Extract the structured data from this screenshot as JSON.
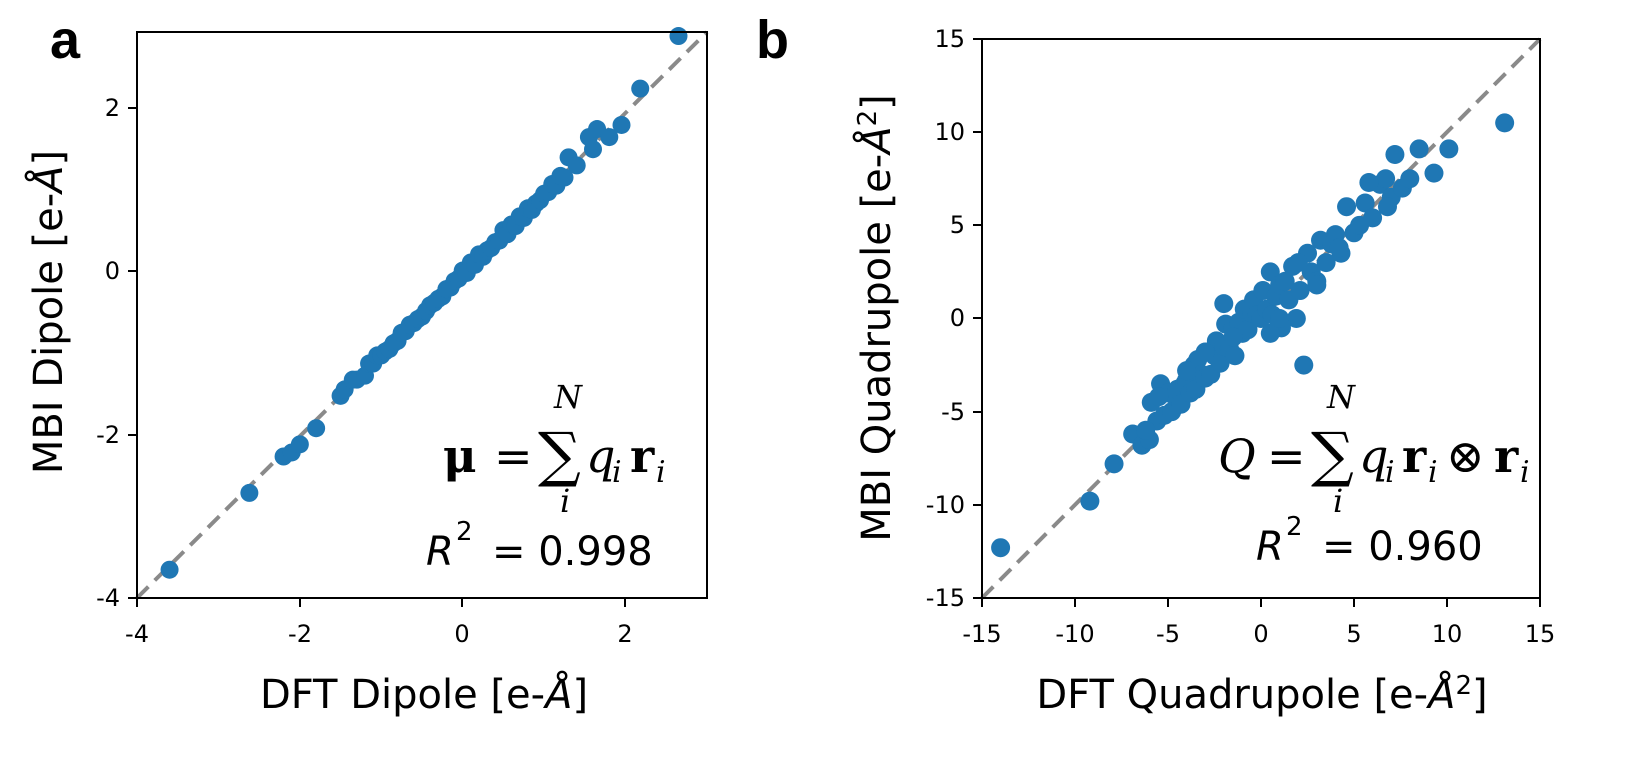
{
  "figure": {
    "panels": [
      {
        "letter": "a",
        "xlabel_prefix": "DFT Dipole [e-",
        "xlabel_unit": "Å",
        "xlabel_suffix": "]",
        "ylabel_prefix": "MBI Dipole [e-",
        "ylabel_unit": "Å",
        "ylabel_suffix": "]",
        "xticks": [
          "-4",
          "-2",
          "0",
          "2"
        ],
        "yticks": [
          "-4",
          "-2",
          "0",
          "2"
        ],
        "r2_label": "R",
        "r2_exp": "2",
        "r2_value": "= 0.998",
        "formula_lhs": "μ",
        "formula_eq": "=",
        "formula_sum": "∑",
        "formula_upper": "N",
        "formula_lower": "i",
        "formula_q": "q",
        "formula_qi": "i",
        "formula_r": "r",
        "formula_ri": "i"
      },
      {
        "letter": "b",
        "xlabel_prefix": "DFT Quadrupole [e-",
        "xlabel_unit": "Å",
        "xlabel_exp": "2",
        "xlabel_suffix": "]",
        "ylabel_prefix": "MBI Quadrupole [e-",
        "ylabel_unit": "Å",
        "ylabel_exp": "2",
        "ylabel_suffix": "]",
        "xticks": [
          "-15",
          "-10",
          "-5",
          "0",
          "5",
          "10",
          "15"
        ],
        "yticks": [
          "-15",
          "-10",
          "-5",
          "0",
          "5",
          "10",
          "15"
        ],
        "r2_label": "R",
        "r2_exp": "2",
        "r2_value": "= 0.960",
        "formula_lhs": "Q",
        "formula_eq": "=",
        "formula_sum": "∑",
        "formula_upper": "N",
        "formula_lower": "i",
        "formula_q": "q",
        "formula_qi": "i",
        "formula_r": "r",
        "formula_ri": "i",
        "formula_otimes": "⊗",
        "formula_r2": "r",
        "formula_r2i": "i"
      }
    ]
  },
  "chart_data": [
    {
      "type": "scatter",
      "title": "a",
      "xlabel": "DFT Dipole [e-Å]",
      "ylabel": "MBI Dipole [e-Å]",
      "xlim": [
        -4,
        3
      ],
      "ylim": [
        -4,
        3
      ],
      "xticks": [
        -4,
        -2,
        0,
        2
      ],
      "yticks": [
        -4,
        -2,
        0,
        2
      ],
      "grid": false,
      "color": "#1f77b4",
      "reference_line": "y = x (dashed gray)",
      "annotation": "R^2 = 0.998",
      "formula": "μ = Σ_i^N q_i r_i",
      "x": [
        -3.6,
        -2.62,
        -2.2,
        -2.1,
        -2.0,
        -1.8,
        -1.5,
        -1.45,
        -1.35,
        -1.3,
        -1.2,
        -1.15,
        -1.1,
        -1.05,
        -1.0,
        -0.95,
        -0.9,
        -0.85,
        -0.8,
        -0.75,
        -0.7,
        -0.65,
        -0.6,
        -0.55,
        -0.5,
        -0.45,
        -0.4,
        -0.35,
        -0.3,
        -0.25,
        -0.2,
        -0.15,
        -0.1,
        -0.05,
        0.0,
        0.05,
        0.1,
        0.15,
        0.2,
        0.25,
        0.3,
        0.35,
        0.4,
        0.45,
        0.5,
        0.55,
        0.6,
        0.65,
        0.7,
        0.75,
        0.8,
        0.85,
        0.9,
        0.95,
        1.0,
        1.05,
        1.1,
        1.15,
        1.2,
        1.25,
        1.3,
        1.4,
        1.55,
        1.6,
        1.65,
        1.8,
        1.95,
        2.18,
        2.65
      ],
      "y": [
        -3.65,
        -2.7,
        -2.25,
        -2.2,
        -2.1,
        -1.9,
        -1.5,
        -1.42,
        -1.3,
        -1.3,
        -1.25,
        -1.1,
        -1.1,
        -1.0,
        -1.0,
        -0.95,
        -0.92,
        -0.85,
        -0.82,
        -0.72,
        -0.7,
        -0.62,
        -0.6,
        -0.55,
        -0.52,
        -0.45,
        -0.38,
        -0.35,
        -0.3,
        -0.27,
        -0.18,
        -0.16,
        -0.08,
        -0.05,
        0.05,
        0.02,
        0.15,
        0.12,
        0.25,
        0.22,
        0.3,
        0.33,
        0.4,
        0.42,
        0.55,
        0.5,
        0.62,
        0.6,
        0.72,
        0.7,
        0.82,
        0.8,
        0.88,
        0.92,
        1.0,
        1.02,
        1.12,
        1.1,
        1.22,
        1.2,
        1.45,
        1.35,
        1.7,
        1.55,
        1.8,
        1.7,
        1.85,
        2.3,
        2.95
      ]
    },
    {
      "type": "scatter",
      "title": "b",
      "xlabel": "DFT Quadrupole [e-Å^2]",
      "ylabel": "MBI Quadrupole [e-Å^2]",
      "xlim": [
        -15,
        15
      ],
      "ylim": [
        -15,
        15
      ],
      "xticks": [
        -15,
        -10,
        -5,
        0,
        5,
        10,
        15
      ],
      "yticks": [
        -15,
        -10,
        -5,
        0,
        5,
        10,
        15
      ],
      "grid": false,
      "color": "#1f77b4",
      "reference_line": "y = x (dashed gray)",
      "annotation": "R^2 = 0.960",
      "formula": "Q = Σ_i^N q_i r_i ⊗ r_i",
      "x": [
        -14.0,
        -9.2,
        -7.9,
        -6.9,
        -6.4,
        -6.0,
        -5.9,
        -5.6,
        -5.4,
        -5.2,
        -5.0,
        -4.8,
        -4.6,
        -4.5,
        -4.3,
        -4.1,
        -4.0,
        -3.8,
        -3.6,
        -3.5,
        -3.4,
        -3.2,
        -3.0,
        -2.9,
        -2.7,
        -2.5,
        -2.4,
        -2.2,
        -2.0,
        -1.9,
        -1.7,
        -1.5,
        -1.4,
        -1.2,
        -1.0,
        -0.9,
        -0.7,
        -0.5,
        -0.4,
        -0.2,
        0.0,
        0.1,
        0.3,
        0.5,
        0.6,
        0.8,
        1.0,
        1.1,
        1.3,
        1.5,
        1.7,
        1.9,
        2.1,
        2.3,
        2.5,
        2.7,
        3.0,
        3.2,
        3.5,
        3.8,
        4.0,
        4.3,
        4.6,
        5.0,
        5.3,
        5.6,
        6.0,
        6.4,
        6.7,
        7.0,
        7.2,
        7.6,
        8.0,
        8.5,
        9.3,
        10.1,
        13.1,
        -3.0,
        -2.0,
        -1.5,
        0.5,
        1.0,
        -5.5,
        -4.0,
        2.0,
        3.0,
        4.2,
        -6.2,
        5.8,
        6.8
      ],
      "y": [
        -12.3,
        -9.8,
        -7.8,
        -6.2,
        -6.8,
        -6.5,
        -4.5,
        -5.5,
        -3.5,
        -5.2,
        -4.0,
        -5.0,
        -4.2,
        -3.8,
        -4.6,
        -3.5,
        -3.3,
        -4.0,
        -2.5,
        -3.8,
        -2.2,
        -3.0,
        -3.2,
        -1.8,
        -3.0,
        -2.0,
        -1.2,
        -2.4,
        -1.5,
        -0.3,
        -1.6,
        -0.5,
        -2.0,
        -0.2,
        -0.8,
        0.5,
        -0.6,
        0.3,
        1.0,
        0.2,
        0.0,
        1.5,
        0.5,
        2.5,
        0.2,
        1.2,
        1.8,
        -0.5,
        2.0,
        1.0,
        2.8,
        0.0,
        1.5,
        -2.5,
        3.5,
        2.5,
        2.0,
        4.2,
        3.0,
        4.0,
        4.5,
        3.5,
        6.0,
        4.6,
        5.0,
        6.2,
        5.4,
        7.2,
        7.5,
        6.5,
        8.8,
        7.0,
        7.5,
        9.1,
        7.8,
        9.1,
        10.5,
        -1.8,
        0.8,
        -1.0,
        -0.8,
        0.0,
        -4.2,
        -2.8,
        3.0,
        1.8,
        3.8,
        -6.0,
        7.3,
        6.0
      ]
    }
  ]
}
